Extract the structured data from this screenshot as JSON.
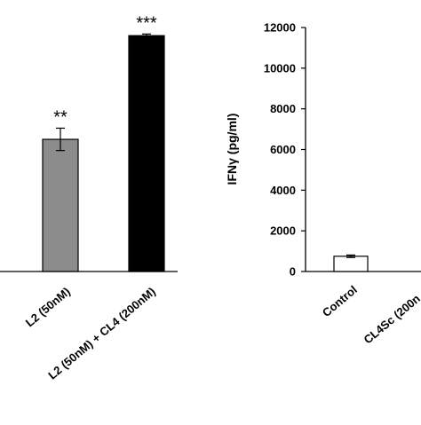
{
  "chart_data": [
    {
      "type": "bar",
      "title": "",
      "xlabel": "",
      "ylabel": "",
      "grid": false,
      "ylim": [
        0,
        12000
      ],
      "categories": [
        "L2 (50nM)",
        "L2 (50nM) + CL4 (200nM)"
      ],
      "values": [
        6500,
        11600
      ],
      "errors": [
        550,
        80
      ],
      "significance": [
        "**",
        "***"
      ],
      "bar_colors": [
        "#8c8c8c",
        "#000000"
      ]
    },
    {
      "type": "bar",
      "title": "",
      "xlabel": "",
      "ylabel": "IFNγ (pg/ml)",
      "grid": false,
      "ylim": [
        0,
        12000
      ],
      "yticks": [
        "0",
        "2000",
        "4000",
        "6000",
        "8000",
        "10000",
        "12000"
      ],
      "categories": [
        "Control",
        "CL4Sc (200n"
      ],
      "values": [
        750,
        null
      ],
      "errors": [
        60,
        null
      ],
      "bar_colors": [
        "#ffffff",
        "#ffffff"
      ]
    }
  ]
}
